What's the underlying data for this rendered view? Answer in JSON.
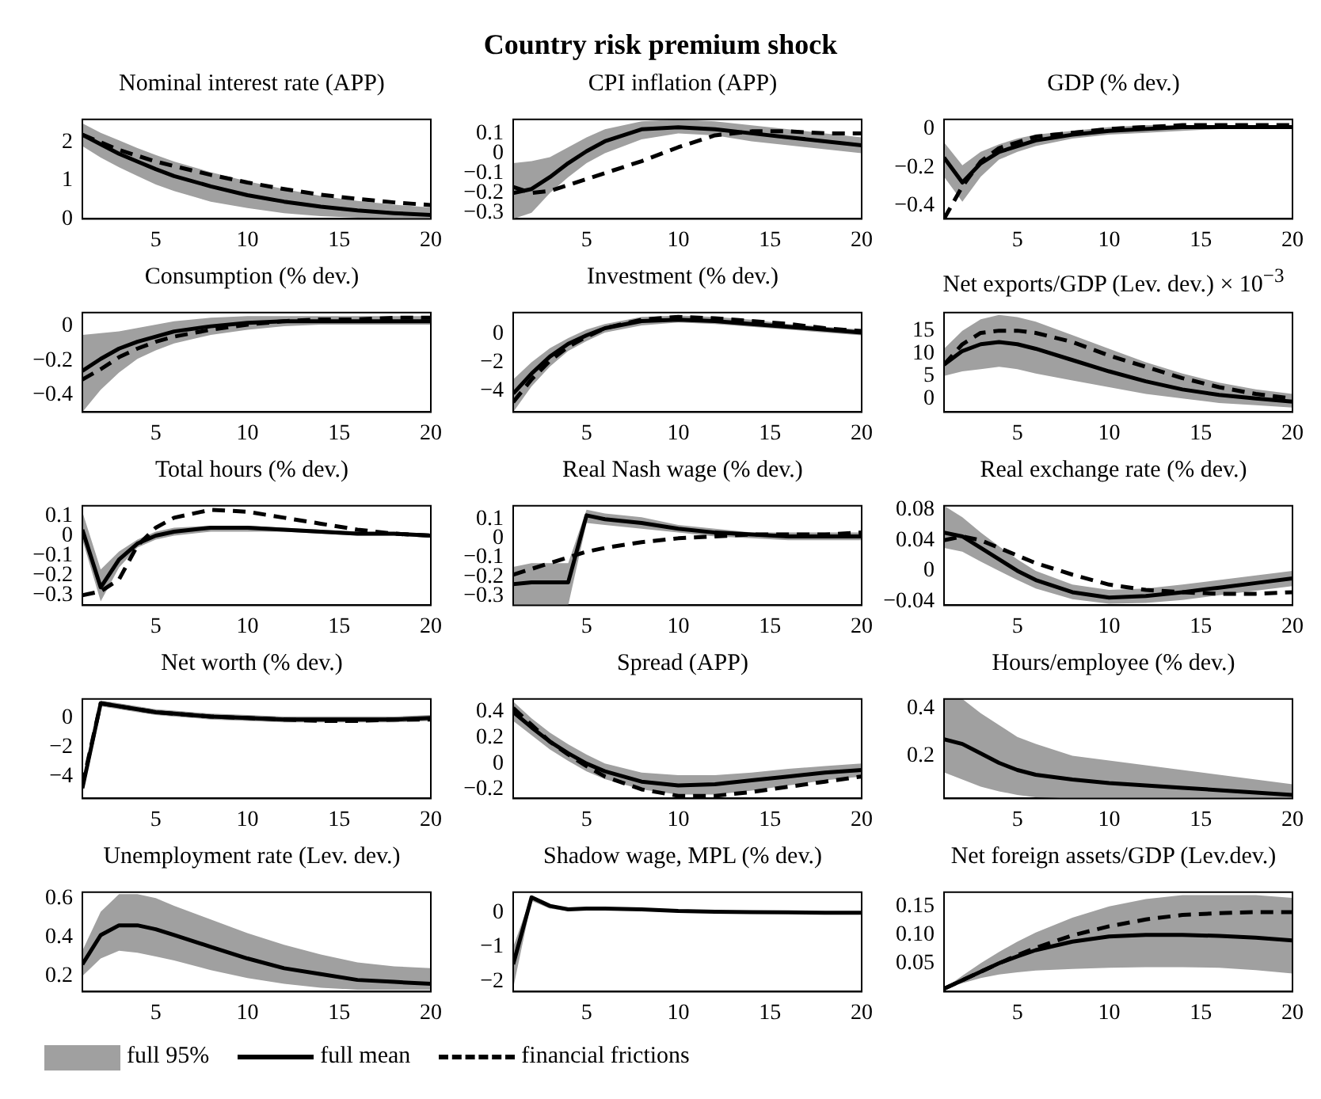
{
  "chart_data": [
    {
      "type": "other",
      "title": "Country risk premium shock"
    },
    {
      "type": "line",
      "title": "Nominal interest rate (APP)",
      "x": [
        1,
        2,
        3,
        4,
        5,
        6,
        8,
        10,
        12,
        14,
        16,
        18,
        20
      ],
      "xlim": [
        1,
        20
      ],
      "xticks": [
        5,
        10,
        15,
        20
      ],
      "ylim": [
        0,
        2.6
      ],
      "yticks": [
        0,
        1,
        2
      ],
      "grid": false,
      "legend": false,
      "series": [
        {
          "color": "#000000",
          "line_style": "solid",
          "values": [
            2.2,
            1.95,
            1.7,
            1.5,
            1.3,
            1.12,
            0.85,
            0.62,
            0.45,
            0.32,
            0.22,
            0.15,
            0.1
          ],
          "lower": [
            1.9,
            1.6,
            1.35,
            1.12,
            0.9,
            0.73,
            0.45,
            0.28,
            0.15,
            0.07,
            0.03,
            0.01,
            0.0
          ],
          "upper": [
            2.5,
            2.25,
            2.05,
            1.85,
            1.67,
            1.5,
            1.22,
            0.98,
            0.78,
            0.6,
            0.47,
            0.37,
            0.3
          ]
        },
        {
          "color": "#000000",
          "line_style": "dashed",
          "values": [
            2.2,
            2.0,
            1.8,
            1.65,
            1.5,
            1.38,
            1.15,
            0.95,
            0.78,
            0.63,
            0.52,
            0.43,
            0.36
          ]
        }
      ]
    },
    {
      "type": "line",
      "title": "CPI inflation (APP)",
      "x": [
        1,
        2,
        3,
        4,
        5,
        6,
        8,
        10,
        12,
        14,
        16,
        18,
        20
      ],
      "xlim": [
        1,
        20
      ],
      "xticks": [
        5,
        10,
        15,
        20
      ],
      "ylim": [
        -0.33,
        0.17
      ],
      "yticks": [
        -0.3,
        -0.2,
        -0.1,
        0,
        0.1
      ],
      "grid": false,
      "legend": false,
      "series": [
        {
          "color": "#000000",
          "line_style": "solid",
          "values": [
            -0.2,
            -0.18,
            -0.12,
            -0.05,
            0.01,
            0.06,
            0.12,
            0.13,
            0.12,
            0.1,
            0.08,
            0.06,
            0.04
          ],
          "lower": [
            -0.33,
            -0.3,
            -0.2,
            -0.12,
            -0.05,
            0,
            0.07,
            0.1,
            0.09,
            0.06,
            0.04,
            0.02,
            0.0
          ],
          "upper": [
            -0.05,
            -0.04,
            -0.02,
            0.03,
            0.08,
            0.12,
            0.16,
            0.17,
            0.16,
            0.14,
            0.12,
            0.1,
            0.08
          ]
        },
        {
          "color": "#000000",
          "line_style": "dashed",
          "values": [
            -0.17,
            -0.2,
            -0.19,
            -0.16,
            -0.13,
            -0.1,
            -0.04,
            0.03,
            0.09,
            0.11,
            0.11,
            0.1,
            0.1
          ]
        }
      ]
    },
    {
      "type": "line",
      "title": "GDP (% dev.)",
      "x": [
        1,
        2,
        3,
        4,
        5,
        6,
        8,
        10,
        12,
        14,
        16,
        18,
        20
      ],
      "xlim": [
        1,
        20
      ],
      "xticks": [
        5,
        10,
        15,
        20
      ],
      "ylim": [
        -0.47,
        0.05
      ],
      "yticks": [
        -0.4,
        -0.2,
        0
      ],
      "grid": false,
      "legend": false,
      "series": [
        {
          "color": "#000000",
          "line_style": "solid",
          "values": [
            -0.15,
            -0.28,
            -0.18,
            -0.12,
            -0.09,
            -0.06,
            -0.03,
            -0.01,
            0,
            0.01,
            0.01,
            0.01,
            0.01
          ],
          "lower": [
            -0.25,
            -0.38,
            -0.25,
            -0.16,
            -0.12,
            -0.09,
            -0.05,
            -0.03,
            -0.02,
            -0.01,
            0,
            0,
            0
          ],
          "upper": [
            -0.07,
            -0.19,
            -0.12,
            -0.08,
            -0.05,
            -0.03,
            -0.01,
            0.01,
            0.02,
            0.02,
            0.02,
            0.02,
            0.02
          ]
        },
        {
          "color": "#000000",
          "line_style": "dashed",
          "values": [
            -0.47,
            -0.3,
            -0.17,
            -0.1,
            -0.07,
            -0.04,
            -0.02,
            0,
            0.01,
            0.02,
            0.02,
            0.02,
            0.02
          ]
        }
      ]
    },
    {
      "type": "line",
      "title": "Consumption (% dev.)",
      "x": [
        1,
        2,
        3,
        4,
        5,
        6,
        8,
        10,
        12,
        14,
        16,
        18,
        20
      ],
      "xlim": [
        1,
        20
      ],
      "xticks": [
        5,
        10,
        15,
        20
      ],
      "ylim": [
        -0.5,
        0.08
      ],
      "yticks": [
        -0.4,
        -0.2,
        0
      ],
      "grid": false,
      "legend": false,
      "series": [
        {
          "color": "#000000",
          "line_style": "solid",
          "values": [
            -0.26,
            -0.19,
            -0.13,
            -0.09,
            -0.06,
            -0.03,
            0,
            0.02,
            0.03,
            0.03,
            0.03,
            0.03,
            0.03
          ],
          "lower": [
            -0.5,
            -0.37,
            -0.27,
            -0.19,
            -0.14,
            -0.1,
            -0.05,
            -0.02,
            0,
            0.01,
            0.01,
            0.01,
            0.01
          ],
          "upper": [
            -0.05,
            -0.04,
            -0.03,
            -0.01,
            0.01,
            0.03,
            0.05,
            0.06,
            0.06,
            0.06,
            0.06,
            0.06,
            0.06
          ]
        },
        {
          "color": "#000000",
          "line_style": "dashed",
          "values": [
            -0.31,
            -0.25,
            -0.18,
            -0.13,
            -0.09,
            -0.06,
            -0.02,
            0.01,
            0.03,
            0.04,
            0.04,
            0.05,
            0.05
          ]
        }
      ]
    },
    {
      "type": "line",
      "title": "Investment (% dev.)",
      "x": [
        1,
        2,
        3,
        4,
        5,
        6,
        8,
        10,
        12,
        14,
        16,
        18,
        20
      ],
      "xlim": [
        1,
        20
      ],
      "xticks": [
        5,
        10,
        15,
        20
      ],
      "ylim": [
        -5.5,
        1.5
      ],
      "yticks": [
        -4,
        -2,
        0
      ],
      "grid": false,
      "legend": false,
      "series": [
        {
          "color": "#000000",
          "line_style": "solid",
          "values": [
            -4.2,
            -2.8,
            -1.6,
            -0.7,
            -0.1,
            0.4,
            0.9,
            1.0,
            0.9,
            0.7,
            0.5,
            0.3,
            0.1
          ],
          "lower": [
            -5.5,
            -3.7,
            -2.3,
            -1.2,
            -0.5,
            0.1,
            0.6,
            0.8,
            0.7,
            0.5,
            0.3,
            0.1,
            -0.1
          ],
          "upper": [
            -3.2,
            -2.0,
            -1.0,
            -0.3,
            0.3,
            0.7,
            1.2,
            1.3,
            1.2,
            1.0,
            0.7,
            0.5,
            0.3
          ]
        },
        {
          "color": "#000000",
          "line_style": "dashed",
          "values": [
            -4.8,
            -3.2,
            -1.9,
            -0.9,
            -0.2,
            0.4,
            1.0,
            1.2,
            1.1,
            0.9,
            0.7,
            0.4,
            0.2
          ]
        }
      ]
    },
    {
      "type": "line",
      "title": "Net exports/GDP (Lev. dev.) × 10$^{−3}$",
      "x": [
        1,
        2,
        3,
        4,
        5,
        6,
        8,
        10,
        12,
        14,
        16,
        18,
        20
      ],
      "xlim": [
        1,
        20
      ],
      "xticks": [
        5,
        10,
        15,
        20
      ],
      "ylim": [
        -3,
        19
      ],
      "yticks": [
        0,
        5,
        10,
        15
      ],
      "grid": false,
      "legend": false,
      "series": [
        {
          "color": "#000000",
          "line_style": "solid",
          "values": [
            7.5,
            10.5,
            12,
            12.5,
            12,
            11,
            8.5,
            6,
            3.8,
            2,
            0.8,
            0,
            -0.7
          ],
          "lower": [
            5,
            6,
            6.5,
            7,
            6.5,
            5.5,
            4,
            2.5,
            1,
            0,
            -1,
            -1.5,
            -2
          ],
          "upper": [
            11,
            15,
            17.5,
            18.5,
            18,
            17,
            14,
            11,
            8,
            5.5,
            3.5,
            2,
            1
          ]
        },
        {
          "color": "#000000",
          "line_style": "dashed",
          "values": [
            7.5,
            12,
            14.5,
            15,
            15,
            14.5,
            12.5,
            9.5,
            7,
            4.5,
            2.5,
            1,
            0
          ]
        }
      ]
    },
    {
      "type": "line",
      "title": "Total hours (% dev.)",
      "x": [
        1,
        2,
        3,
        4,
        5,
        6,
        8,
        10,
        12,
        14,
        16,
        18,
        20
      ],
      "xlim": [
        1,
        20
      ],
      "xticks": [
        5,
        10,
        15,
        20
      ],
      "ylim": [
        -0.35,
        0.15
      ],
      "yticks": [
        -0.3,
        -0.2,
        -0.1,
        0,
        0.1
      ],
      "grid": false,
      "legend": false,
      "series": [
        {
          "color": "#000000",
          "line_style": "solid",
          "values": [
            0.03,
            -0.26,
            -0.12,
            -0.04,
            0,
            0.02,
            0.04,
            0.04,
            0.03,
            0.02,
            0.01,
            0.01,
            0
          ],
          "lower": [
            -0.02,
            -0.33,
            -0.16,
            -0.06,
            -0.02,
            0,
            0.02,
            0.02,
            0.02,
            0.01,
            0,
            0,
            -0.01
          ],
          "upper": [
            0.12,
            -0.17,
            -0.08,
            -0.02,
            0.02,
            0.04,
            0.05,
            0.05,
            0.04,
            0.03,
            0.02,
            0.01,
            0.01
          ]
        },
        {
          "color": "#000000",
          "line_style": "dashed",
          "values": [
            -0.3,
            -0.28,
            -0.22,
            -0.05,
            0.04,
            0.09,
            0.13,
            0.12,
            0.09,
            0.06,
            0.03,
            0.01,
            0
          ]
        }
      ]
    },
    {
      "type": "line",
      "title": "Real Nash wage (% dev.)",
      "x": [
        1,
        2,
        3,
        4,
        5,
        6,
        8,
        10,
        12,
        14,
        16,
        18,
        20
      ],
      "xlim": [
        1,
        20
      ],
      "xticks": [
        5,
        10,
        15,
        20
      ],
      "ylim": [
        -0.35,
        0.17
      ],
      "yticks": [
        -0.3,
        -0.2,
        -0.1,
        0,
        0.1
      ],
      "grid": false,
      "legend": false,
      "series": [
        {
          "color": "#000000",
          "line_style": "solid",
          "values": [
            -0.24,
            -0.23,
            -0.23,
            -0.23,
            0.12,
            0.1,
            0.08,
            0.05,
            0.03,
            0.02,
            0.01,
            0.01,
            0.01
          ],
          "lower": [
            -0.35,
            -0.35,
            -0.35,
            -0.35,
            0.08,
            0.07,
            0.05,
            0.03,
            0.01,
            0,
            -0.01,
            -0.01,
            -0.01
          ],
          "upper": [
            -0.15,
            -0.13,
            -0.13,
            -0.13,
            0.15,
            0.13,
            0.11,
            0.07,
            0.05,
            0.03,
            0.03,
            0.03,
            0.03
          ]
        },
        {
          "color": "#000000",
          "line_style": "dashed",
          "values": [
            -0.19,
            -0.16,
            -0.13,
            -0.1,
            -0.07,
            -0.05,
            -0.02,
            0,
            0.01,
            0.02,
            0.02,
            0.02,
            0.03
          ]
        }
      ]
    },
    {
      "type": "line",
      "title": "Real exchange rate (% dev.)",
      "x": [
        1,
        2,
        3,
        4,
        5,
        6,
        8,
        10,
        12,
        14,
        16,
        18,
        20
      ],
      "xlim": [
        1,
        20
      ],
      "xticks": [
        5,
        10,
        15,
        20
      ],
      "ylim": [
        -0.045,
        0.085
      ],
      "yticks": [
        -0.04,
        0,
        0.04,
        0.08
      ],
      "grid": false,
      "legend": false,
      "series": [
        {
          "color": "#000000",
          "line_style": "solid",
          "values": [
            0.05,
            0.045,
            0.03,
            0.015,
            0,
            -0.012,
            -0.028,
            -0.035,
            -0.033,
            -0.028,
            -0.022,
            -0.016,
            -0.01
          ],
          "lower": [
            0.03,
            0.025,
            0.012,
            0,
            -0.012,
            -0.023,
            -0.037,
            -0.043,
            -0.042,
            -0.038,
            -0.032,
            -0.026,
            -0.02
          ],
          "upper": [
            0.085,
            0.07,
            0.05,
            0.032,
            0.015,
            0,
            -0.018,
            -0.025,
            -0.023,
            -0.018,
            -0.012,
            -0.006,
            0
          ]
        },
        {
          "color": "#000000",
          "line_style": "dashed",
          "values": [
            0.04,
            0.045,
            0.04,
            0.03,
            0.02,
            0.01,
            -0.005,
            -0.018,
            -0.025,
            -0.028,
            -0.03,
            -0.03,
            -0.028
          ]
        }
      ]
    },
    {
      "type": "line",
      "title": "Net worth (% dev.)",
      "x": [
        1,
        2,
        3,
        4,
        5,
        6,
        8,
        10,
        12,
        14,
        16,
        18,
        20
      ],
      "xlim": [
        1,
        20
      ],
      "xticks": [
        5,
        10,
        15,
        20
      ],
      "ylim": [
        -5.5,
        1.3
      ],
      "yticks": [
        -4,
        -2,
        0
      ],
      "grid": false,
      "legend": false,
      "series": [
        {
          "color": "#000000",
          "line_style": "solid",
          "values": [
            -4.8,
            1,
            0.8,
            0.6,
            0.4,
            0.3,
            0.1,
            0,
            -0.1,
            -0.1,
            -0.1,
            -0.1,
            0
          ],
          "lower": [
            -5.2,
            0.8,
            0.6,
            0.4,
            0.2,
            0.1,
            -0.1,
            -0.2,
            -0.3,
            -0.3,
            -0.3,
            -0.3,
            -0.2
          ],
          "upper": [
            -4.4,
            1.2,
            1.0,
            0.8,
            0.6,
            0.5,
            0.3,
            0.2,
            0.1,
            0.1,
            0.1,
            0.1,
            0.2
          ]
        },
        {
          "color": "#000000",
          "line_style": "dashed",
          "values": [
            -4.6,
            1,
            0.8,
            0.6,
            0.4,
            0.3,
            0.1,
            0,
            -0.1,
            -0.2,
            -0.2,
            -0.1,
            -0.1
          ]
        }
      ]
    },
    {
      "type": "line",
      "title": "Spread (APP)",
      "x": [
        1,
        2,
        3,
        4,
        5,
        6,
        8,
        10,
        12,
        14,
        16,
        18,
        20
      ],
      "xlim": [
        1,
        20
      ],
      "xticks": [
        5,
        10,
        15,
        20
      ],
      "ylim": [
        -0.27,
        0.5
      ],
      "yticks": [
        -0.2,
        0,
        0.2,
        0.4
      ],
      "grid": false,
      "legend": false,
      "series": [
        {
          "color": "#000000",
          "line_style": "solid",
          "values": [
            0.4,
            0.28,
            0.17,
            0.08,
            0,
            -0.06,
            -0.14,
            -0.17,
            -0.16,
            -0.13,
            -0.1,
            -0.07,
            -0.05
          ],
          "lower": [
            0.33,
            0.22,
            0.11,
            0.02,
            -0.06,
            -0.12,
            -0.2,
            -0.24,
            -0.24,
            -0.21,
            -0.17,
            -0.13,
            -0.1
          ],
          "upper": [
            0.48,
            0.35,
            0.24,
            0.15,
            0.07,
            0,
            -0.07,
            -0.09,
            -0.09,
            -0.07,
            -0.04,
            -0.02,
            0
          ]
        },
        {
          "color": "#000000",
          "line_style": "dashed",
          "values": [
            0.43,
            0.3,
            0.17,
            0.07,
            -0.02,
            -0.1,
            -0.2,
            -0.25,
            -0.25,
            -0.22,
            -0.18,
            -0.14,
            -0.1
          ]
        }
      ]
    },
    {
      "type": "line",
      "title": "Hours/employee (% dev.)",
      "x": [
        1,
        2,
        3,
        4,
        5,
        6,
        8,
        10,
        12,
        14,
        16,
        18,
        20
      ],
      "xlim": [
        1,
        20
      ],
      "xticks": [
        5,
        10,
        15,
        20
      ],
      "ylim": [
        0.02,
        0.44
      ],
      "yticks": [
        0.2,
        0.4
      ],
      "grid": false,
      "legend": false,
      "series": [
        {
          "color": "#000000",
          "line_style": "solid",
          "values": [
            0.27,
            0.25,
            0.21,
            0.17,
            0.14,
            0.12,
            0.1,
            0.085,
            0.075,
            0.065,
            0.055,
            0.045,
            0.035
          ],
          "lower": [
            0.13,
            0.1,
            0.07,
            0.05,
            0.035,
            0.025,
            0.02,
            0.02,
            0.02,
            0.02,
            0.02,
            0.02,
            0.02
          ],
          "upper": [
            0.44,
            0.44,
            0.38,
            0.33,
            0.28,
            0.25,
            0.2,
            0.18,
            0.16,
            0.14,
            0.12,
            0.1,
            0.08
          ]
        }
      ]
    },
    {
      "type": "line",
      "title": "Unemployment rate (Lev. dev.)",
      "x": [
        1,
        2,
        3,
        4,
        5,
        6,
        8,
        10,
        12,
        14,
        16,
        18,
        20
      ],
      "xlim": [
        1,
        20
      ],
      "xticks": [
        5,
        10,
        15,
        20
      ],
      "ylim": [
        0.12,
        0.63
      ],
      "yticks": [
        0.2,
        0.4,
        0.6
      ],
      "grid": false,
      "legend": false,
      "series": [
        {
          "color": "#000000",
          "line_style": "solid",
          "values": [
            0.26,
            0.41,
            0.46,
            0.46,
            0.44,
            0.41,
            0.35,
            0.29,
            0.24,
            0.21,
            0.18,
            0.17,
            0.16
          ],
          "lower": [
            0.2,
            0.29,
            0.33,
            0.32,
            0.3,
            0.28,
            0.23,
            0.19,
            0.16,
            0.14,
            0.13,
            0.13,
            0.13
          ],
          "upper": [
            0.33,
            0.53,
            0.62,
            0.62,
            0.6,
            0.56,
            0.49,
            0.42,
            0.36,
            0.31,
            0.27,
            0.25,
            0.24
          ]
        }
      ]
    },
    {
      "type": "line",
      "title": "Shadow wage, MPL (% dev.)",
      "x": [
        1,
        2,
        3,
        4,
        5,
        6,
        8,
        10,
        12,
        14,
        16,
        18,
        20
      ],
      "xlim": [
        1,
        20
      ],
      "xticks": [
        5,
        10,
        15,
        20
      ],
      "ylim": [
        -2.3,
        0.6
      ],
      "yticks": [
        -2,
        -1,
        0
      ],
      "grid": false,
      "legend": false,
      "series": [
        {
          "color": "#000000",
          "line_style": "solid",
          "values": [
            -1.5,
            0.45,
            0.2,
            0.1,
            0.12,
            0.12,
            0.1,
            0.05,
            0.03,
            0.02,
            0.01,
            0,
            0
          ],
          "lower": [
            -2.2,
            0.35,
            0.12,
            0.05,
            0.07,
            0.07,
            0.05,
            0.01,
            0,
            -0.01,
            -0.02,
            -0.03,
            -0.03
          ],
          "upper": [
            -1.0,
            0.5,
            0.25,
            0.14,
            0.15,
            0.15,
            0.13,
            0.08,
            0.06,
            0.04,
            0.03,
            0.02,
            0.02
          ]
        }
      ]
    },
    {
      "type": "line",
      "title": "Net foreign assets/GDP (Lev.dev.)",
      "annotations": [
        "full 95%"
      ],
      "x": [
        1,
        2,
        3,
        4,
        5,
        6,
        8,
        10,
        12,
        14,
        16,
        18,
        20
      ],
      "xlim": [
        1,
        20
      ],
      "xticks": [
        5,
        10,
        15,
        20
      ],
      "ylim": [
        0,
        0.175
      ],
      "yticks": [
        {
          "value": 0.05,
          "label": "0.05"
        },
        {
          "value": 0.1,
          "label": "0.10"
        },
        {
          "value": 0.15,
          "label": "0.15"
        }
      ],
      "grid": false,
      "legend": "bottom",
      "series": [
        {
          "name": "full mean",
          "color": "#000000",
          "line_style": "solid",
          "values": [
            0.005,
            0.02,
            0.035,
            0.05,
            0.062,
            0.073,
            0.088,
            0.097,
            0.1,
            0.1,
            0.098,
            0.095,
            0.09
          ],
          "lower": [
            0.005,
            0.015,
            0.024,
            0.03,
            0.034,
            0.037,
            0.04,
            0.042,
            0.043,
            0.043,
            0.042,
            0.038,
            0.032
          ],
          "upper": [
            0.005,
            0.028,
            0.05,
            0.07,
            0.088,
            0.104,
            0.13,
            0.15,
            0.163,
            0.17,
            0.17,
            0.17,
            0.165
          ]
        },
        {
          "name": "financial frictions",
          "color": "#000000",
          "line_style": "dashed",
          "values": [
            0.005,
            0.02,
            0.035,
            0.05,
            0.064,
            0.077,
            0.099,
            0.115,
            0.127,
            0.135,
            0.138,
            0.14,
            0.14
          ]
        }
      ]
    }
  ]
}
